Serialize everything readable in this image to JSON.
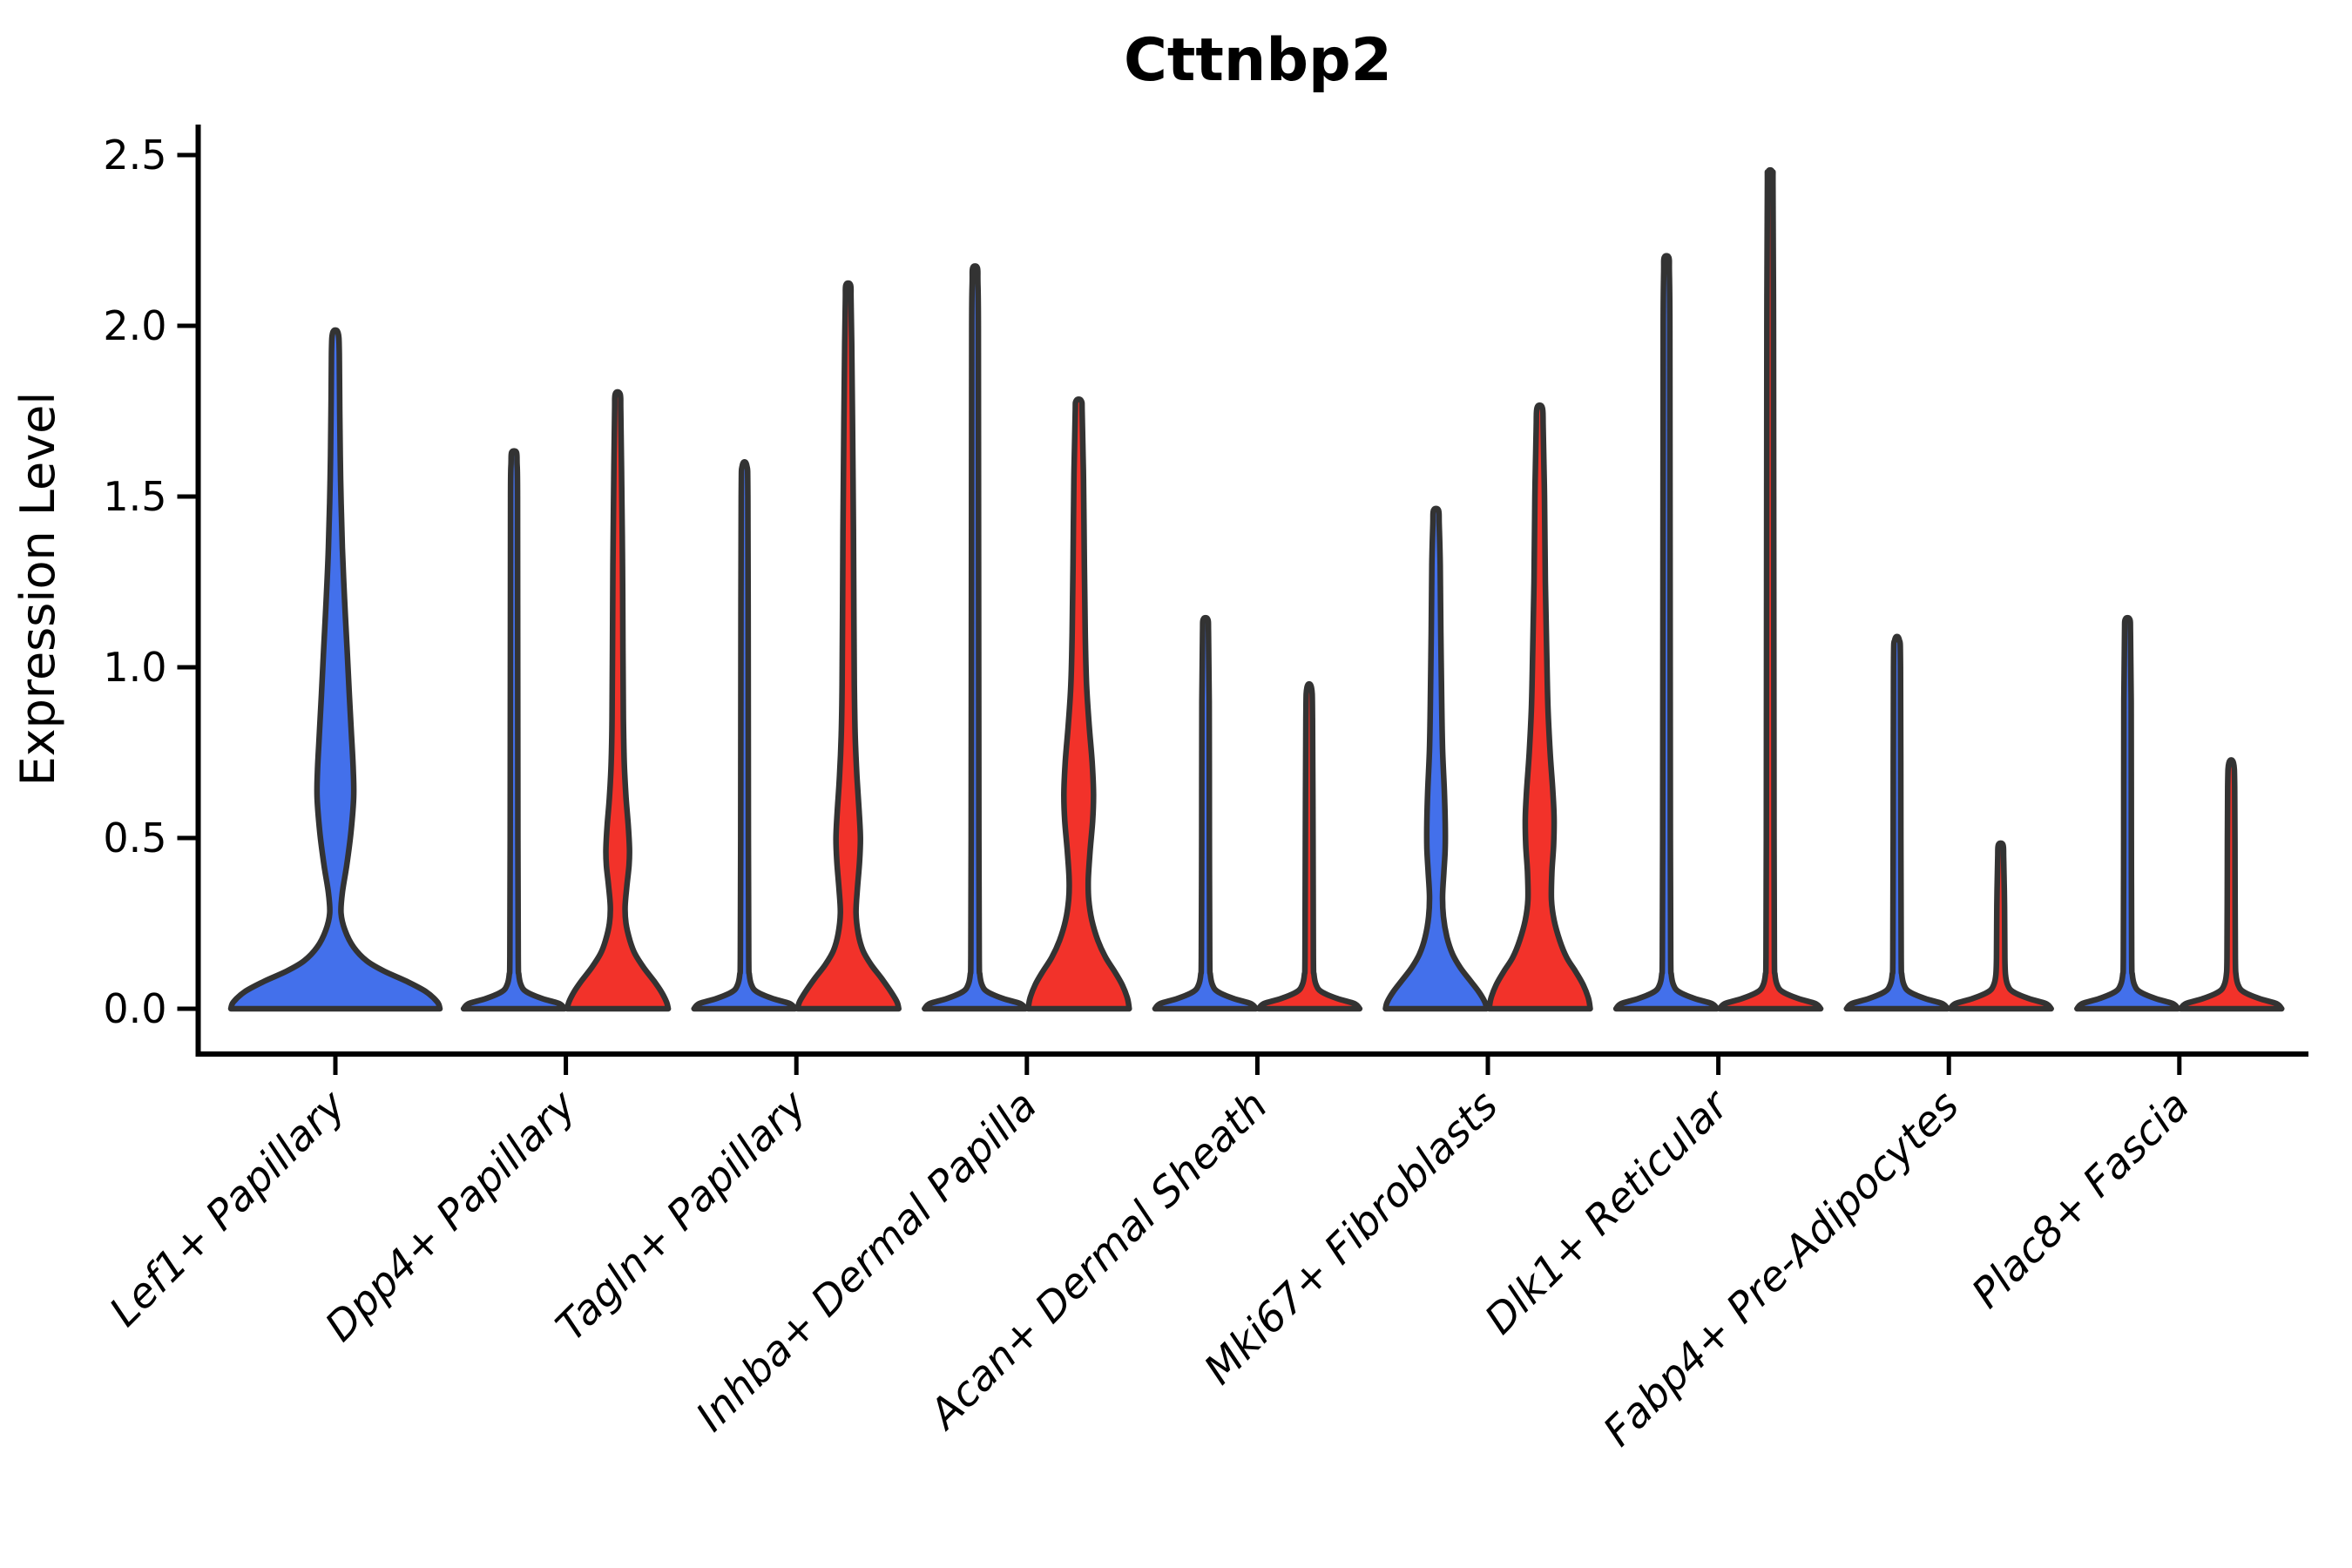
{
  "title": "Cttnbp2",
  "y_axis": {
    "label": "Expression Level",
    "tick_labels": [
      "0.0",
      "0.5",
      "1.0",
      "1.5",
      "2.0",
      "2.5"
    ],
    "tick_values": [
      0,
      0.5,
      1.0,
      1.5,
      2.0,
      2.5
    ]
  },
  "x_axis": {
    "categories": [
      "Lef1+ Papillary",
      "Dpp4+ Papillary",
      "Tagln+ Papillary",
      "Inhba+ Dermal Papilla",
      "Acan+ Dermal Sheath",
      "Mki67+ Fibroblasts",
      "Dlk1+ Reticular",
      "Fabp4+ Pre-Adipocytes",
      "Plac8+ Fascia"
    ]
  },
  "colors": {
    "blue_fill": "#4370EB",
    "red_fill": "#F2322A",
    "violin_outline": "#333333",
    "axis_color": "#000000",
    "background": "#FFFFFF"
  },
  "chart_data": {
    "type": "violin",
    "title": "Cttnbp2",
    "xlabel": "",
    "ylabel": "Expression Level",
    "ylim": [
      -0.13,
      2.59
    ],
    "yticks": [
      0,
      0.5,
      1.0,
      1.5,
      2.0,
      2.5
    ],
    "grid": false,
    "legend": "none",
    "categories": [
      "Lef1+ Papillary",
      "Dpp4+ Papillary",
      "Tagln+ Papillary",
      "Inhba+ Dermal Papilla",
      "Acan+ Dermal Sheath",
      "Mki67+ Fibroblasts",
      "Dlk1+ Reticular",
      "Fabp4+ Pre-Adipocytes",
      "Plac8+ Fascia"
    ],
    "groups": {
      "left": "blue",
      "right": "red",
      "center": "blue"
    },
    "violins": [
      {
        "category": "Lef1+ Papillary",
        "slug": "lef1-papillary",
        "ci": 0,
        "side": "center",
        "group": "blue",
        "max": 1.98,
        "profile": [
          [
            0,
            120
          ],
          [
            0.02,
            117
          ],
          [
            0.05,
            104
          ],
          [
            0.08,
            82
          ],
          [
            0.11,
            56
          ],
          [
            0.14,
            36
          ],
          [
            0.18,
            21
          ],
          [
            0.23,
            11
          ],
          [
            0.28,
            6.5
          ],
          [
            0.34,
            8
          ],
          [
            0.42,
            13
          ],
          [
            0.52,
            18
          ],
          [
            0.62,
            21
          ],
          [
            0.7,
            20.5
          ],
          [
            0.8,
            18.5
          ],
          [
            0.92,
            16
          ],
          [
            1.05,
            13.5
          ],
          [
            1.2,
            10.5
          ],
          [
            1.35,
            8
          ],
          [
            1.55,
            6
          ],
          [
            1.75,
            5
          ],
          [
            1.92,
            4.5
          ],
          [
            1.98,
            3
          ]
        ]
      },
      {
        "category": "Dpp4+ Papillary",
        "slug": "dpp4-papillary",
        "ci": 1,
        "side": "left",
        "group": "blue",
        "max": 1.63,
        "profile": [
          [
            0,
            58
          ],
          [
            0.015,
            52
          ],
          [
            0.03,
            32
          ],
          [
            0.05,
            14
          ],
          [
            0.07,
            8
          ],
          [
            0.1,
            5.5
          ],
          [
            0.15,
            4.8
          ],
          [
            0.5,
            4.4
          ],
          [
            1.0,
            4.2
          ],
          [
            1.5,
            4
          ],
          [
            1.6,
            3.4
          ],
          [
            1.63,
            2.6
          ]
        ]
      },
      {
        "category": "Dpp4+ Papillary",
        "slug": "dpp4-papillary",
        "ci": 1,
        "side": "right",
        "group": "red",
        "max": 1.8,
        "profile": [
          [
            0,
            58
          ],
          [
            0.02,
            56
          ],
          [
            0.05,
            50
          ],
          [
            0.08,
            42
          ],
          [
            0.12,
            30
          ],
          [
            0.16,
            20
          ],
          [
            0.2,
            14
          ],
          [
            0.25,
            9.5
          ],
          [
            0.3,
            8.5
          ],
          [
            0.36,
            10.5
          ],
          [
            0.42,
            13
          ],
          [
            0.47,
            13.5
          ],
          [
            0.54,
            12
          ],
          [
            0.62,
            9.5
          ],
          [
            0.72,
            7.5
          ],
          [
            0.85,
            6.5
          ],
          [
            1.05,
            6
          ],
          [
            1.3,
            5.5
          ],
          [
            1.55,
            4.5
          ],
          [
            1.75,
            3.5
          ],
          [
            1.8,
            2.8
          ]
        ]
      },
      {
        "category": "Tagln+ Papillary",
        "slug": "tagln-papillary",
        "ci": 2,
        "side": "left",
        "group": "blue",
        "max": 1.59,
        "profile": [
          [
            0,
            58
          ],
          [
            0.015,
            52
          ],
          [
            0.03,
            32
          ],
          [
            0.05,
            14
          ],
          [
            0.07,
            8
          ],
          [
            0.1,
            5.5
          ],
          [
            0.15,
            4.8
          ],
          [
            0.5,
            4.4
          ],
          [
            1.0,
            4.2
          ],
          [
            1.5,
            3.8
          ],
          [
            1.59,
            2.6
          ]
        ]
      },
      {
        "category": "Tagln+ Papillary",
        "slug": "tagln-papillary",
        "ci": 2,
        "side": "right",
        "group": "red",
        "max": 2.12,
        "profile": [
          [
            0,
            58
          ],
          [
            0.02,
            56
          ],
          [
            0.05,
            49
          ],
          [
            0.09,
            38
          ],
          [
            0.13,
            26
          ],
          [
            0.17,
            17
          ],
          [
            0.22,
            11.5
          ],
          [
            0.28,
            9
          ],
          [
            0.35,
            10.5
          ],
          [
            0.43,
            13
          ],
          [
            0.5,
            14
          ],
          [
            0.58,
            12.5
          ],
          [
            0.68,
            10
          ],
          [
            0.8,
            8
          ],
          [
            0.95,
            7
          ],
          [
            1.15,
            6.5
          ],
          [
            1.4,
            6
          ],
          [
            1.7,
            5
          ],
          [
            1.95,
            4
          ],
          [
            2.08,
            3.2
          ],
          [
            2.12,
            2.6
          ]
        ]
      },
      {
        "category": "Inhba+ Dermal Papilla",
        "slug": "inhba-dermal-papilla",
        "ci": 3,
        "side": "left",
        "group": "blue",
        "max": 2.17,
        "profile": [
          [
            0,
            58
          ],
          [
            0.015,
            52
          ],
          [
            0.03,
            32
          ],
          [
            0.05,
            14
          ],
          [
            0.07,
            8
          ],
          [
            0.1,
            5.5
          ],
          [
            0.15,
            4.8
          ],
          [
            0.5,
            4.4
          ],
          [
            1.0,
            4.2
          ],
          [
            1.5,
            4
          ],
          [
            2.0,
            3.8
          ],
          [
            2.13,
            3.2
          ],
          [
            2.17,
            2.6
          ]
        ]
      },
      {
        "category": "Inhba+ Dermal Papilla",
        "slug": "inhba-dermal-papilla",
        "ci": 3,
        "side": "right",
        "group": "red",
        "max": 1.78,
        "profile": [
          [
            0,
            58
          ],
          [
            0.03,
            56
          ],
          [
            0.07,
            50
          ],
          [
            0.11,
            41
          ],
          [
            0.15,
            31
          ],
          [
            0.2,
            22
          ],
          [
            0.26,
            15
          ],
          [
            0.32,
            11.5
          ],
          [
            0.38,
            11
          ],
          [
            0.46,
            13
          ],
          [
            0.55,
            16
          ],
          [
            0.63,
            17
          ],
          [
            0.72,
            15.5
          ],
          [
            0.83,
            12
          ],
          [
            0.95,
            9
          ],
          [
            1.1,
            7.5
          ],
          [
            1.3,
            6.5
          ],
          [
            1.55,
            5.5
          ],
          [
            1.74,
            4
          ],
          [
            1.78,
            3
          ]
        ]
      },
      {
        "category": "Acan+ Dermal Sheath",
        "slug": "acan-dermal-sheath",
        "ci": 4,
        "side": "left",
        "group": "blue",
        "max": 1.14,
        "profile": [
          [
            0,
            58
          ],
          [
            0.015,
            52
          ],
          [
            0.03,
            32
          ],
          [
            0.05,
            14
          ],
          [
            0.07,
            8
          ],
          [
            0.1,
            5.5
          ],
          [
            0.15,
            4.8
          ],
          [
            0.5,
            4.4
          ],
          [
            0.9,
            4.2
          ],
          [
            1.1,
            3.4
          ],
          [
            1.14,
            2.6
          ]
        ]
      },
      {
        "category": "Acan+ Dermal Sheath",
        "slug": "acan-dermal-sheath",
        "ci": 4,
        "side": "right",
        "group": "red",
        "max": 0.94,
        "profile": [
          [
            0,
            58
          ],
          [
            0.015,
            52
          ],
          [
            0.03,
            32
          ],
          [
            0.05,
            14
          ],
          [
            0.07,
            8
          ],
          [
            0.1,
            5.5
          ],
          [
            0.15,
            4.8
          ],
          [
            0.5,
            4.4
          ],
          [
            0.85,
            3.8
          ],
          [
            0.94,
            2.6
          ]
        ]
      },
      {
        "category": "Mki67+ Fibroblasts",
        "slug": "mki67-fibroblasts",
        "ci": 5,
        "side": "left",
        "group": "blue",
        "max": 1.46,
        "profile": [
          [
            0,
            58
          ],
          [
            0.02,
            56
          ],
          [
            0.05,
            49
          ],
          [
            0.08,
            40
          ],
          [
            0.12,
            28
          ],
          [
            0.16,
            19
          ],
          [
            0.21,
            12.5
          ],
          [
            0.27,
            8.5
          ],
          [
            0.33,
            7.5
          ],
          [
            0.4,
            9
          ],
          [
            0.47,
            10.5
          ],
          [
            0.55,
            10.5
          ],
          [
            0.64,
            9.5
          ],
          [
            0.76,
            7.5
          ],
          [
            0.9,
            6.5
          ],
          [
            1.1,
            5.5
          ],
          [
            1.3,
            4.8
          ],
          [
            1.42,
            3.6
          ],
          [
            1.46,
            2.8
          ]
        ]
      },
      {
        "category": "Mki67+ Fibroblasts",
        "slug": "mki67-fibroblasts",
        "ci": 5,
        "side": "right",
        "group": "red",
        "max": 1.76,
        "profile": [
          [
            0,
            58
          ],
          [
            0.03,
            56
          ],
          [
            0.07,
            50
          ],
          [
            0.11,
            41
          ],
          [
            0.15,
            31
          ],
          [
            0.2,
            23
          ],
          [
            0.26,
            16.5
          ],
          [
            0.32,
            13.5
          ],
          [
            0.4,
            14
          ],
          [
            0.48,
            16
          ],
          [
            0.56,
            16.5
          ],
          [
            0.64,
            15
          ],
          [
            0.75,
            12
          ],
          [
            0.88,
            9.5
          ],
          [
            1.05,
            8
          ],
          [
            1.25,
            6.5
          ],
          [
            1.5,
            5.5
          ],
          [
            1.7,
            4
          ],
          [
            1.76,
            3
          ]
        ]
      },
      {
        "category": "Dlk1+ Reticular",
        "slug": "dlk1-reticular",
        "ci": 6,
        "side": "left",
        "group": "blue",
        "max": 2.2,
        "profile": [
          [
            0,
            58
          ],
          [
            0.015,
            52
          ],
          [
            0.03,
            32
          ],
          [
            0.05,
            14
          ],
          [
            0.07,
            8
          ],
          [
            0.1,
            5.5
          ],
          [
            0.15,
            4.8
          ],
          [
            0.5,
            4.4
          ],
          [
            1.0,
            4.2
          ],
          [
            1.5,
            4
          ],
          [
            2.0,
            3.8
          ],
          [
            2.16,
            3.2
          ],
          [
            2.2,
            2.6
          ]
        ]
      },
      {
        "category": "Dlk1+ Reticular",
        "slug": "dlk1-reticular",
        "ci": 6,
        "side": "right",
        "group": "red",
        "max": 2.45,
        "profile": [
          [
            0,
            58
          ],
          [
            0.015,
            52
          ],
          [
            0.03,
            32
          ],
          [
            0.05,
            14
          ],
          [
            0.07,
            8
          ],
          [
            0.1,
            5.5
          ],
          [
            0.15,
            4.8
          ],
          [
            0.5,
            4.4
          ],
          [
            1.0,
            4.2
          ],
          [
            1.5,
            4
          ],
          [
            2.0,
            3.8
          ],
          [
            2.4,
            3.2
          ],
          [
            2.45,
            2.6
          ]
        ]
      },
      {
        "category": "Fabp4+ Pre-Adipocytes",
        "slug": "fabp4-pre-adipocytes",
        "ci": 7,
        "side": "left",
        "group": "blue",
        "max": 1.08,
        "profile": [
          [
            0,
            58
          ],
          [
            0.015,
            52
          ],
          [
            0.03,
            32
          ],
          [
            0.05,
            14
          ],
          [
            0.07,
            8
          ],
          [
            0.1,
            5.5
          ],
          [
            0.15,
            4.8
          ],
          [
            0.5,
            4.4
          ],
          [
            1.0,
            4
          ],
          [
            1.08,
            2.6
          ]
        ]
      },
      {
        "category": "Fabp4+ Pre-Adipocytes",
        "slug": "fabp4-pre-adipocytes",
        "ci": 7,
        "side": "right",
        "group": "red",
        "max": 0.48,
        "profile": [
          [
            0,
            58
          ],
          [
            0.015,
            52
          ],
          [
            0.03,
            32
          ],
          [
            0.05,
            14
          ],
          [
            0.07,
            8
          ],
          [
            0.1,
            5.5
          ],
          [
            0.15,
            4.8
          ],
          [
            0.3,
            4.4
          ],
          [
            0.44,
            3.4
          ],
          [
            0.48,
            2.6
          ]
        ]
      },
      {
        "category": "Plac8+ Fascia",
        "slug": "plac8-fascia",
        "ci": 8,
        "side": "left",
        "group": "blue",
        "max": 1.14,
        "profile": [
          [
            0,
            58
          ],
          [
            0.015,
            52
          ],
          [
            0.03,
            32
          ],
          [
            0.05,
            14
          ],
          [
            0.07,
            8
          ],
          [
            0.1,
            5.5
          ],
          [
            0.15,
            4.8
          ],
          [
            0.5,
            4.4
          ],
          [
            0.9,
            4.2
          ],
          [
            1.1,
            3.4
          ],
          [
            1.14,
            2.6
          ]
        ]
      },
      {
        "category": "Plac8+ Fascia",
        "slug": "plac8-fascia",
        "ci": 8,
        "side": "right",
        "group": "red",
        "max": 0.72,
        "profile": [
          [
            0,
            58
          ],
          [
            0.015,
            52
          ],
          [
            0.03,
            32
          ],
          [
            0.05,
            14
          ],
          [
            0.07,
            8
          ],
          [
            0.1,
            5.5
          ],
          [
            0.15,
            4.8
          ],
          [
            0.4,
            4.4
          ],
          [
            0.65,
            4
          ],
          [
            0.72,
            2.6
          ]
        ]
      }
    ]
  }
}
